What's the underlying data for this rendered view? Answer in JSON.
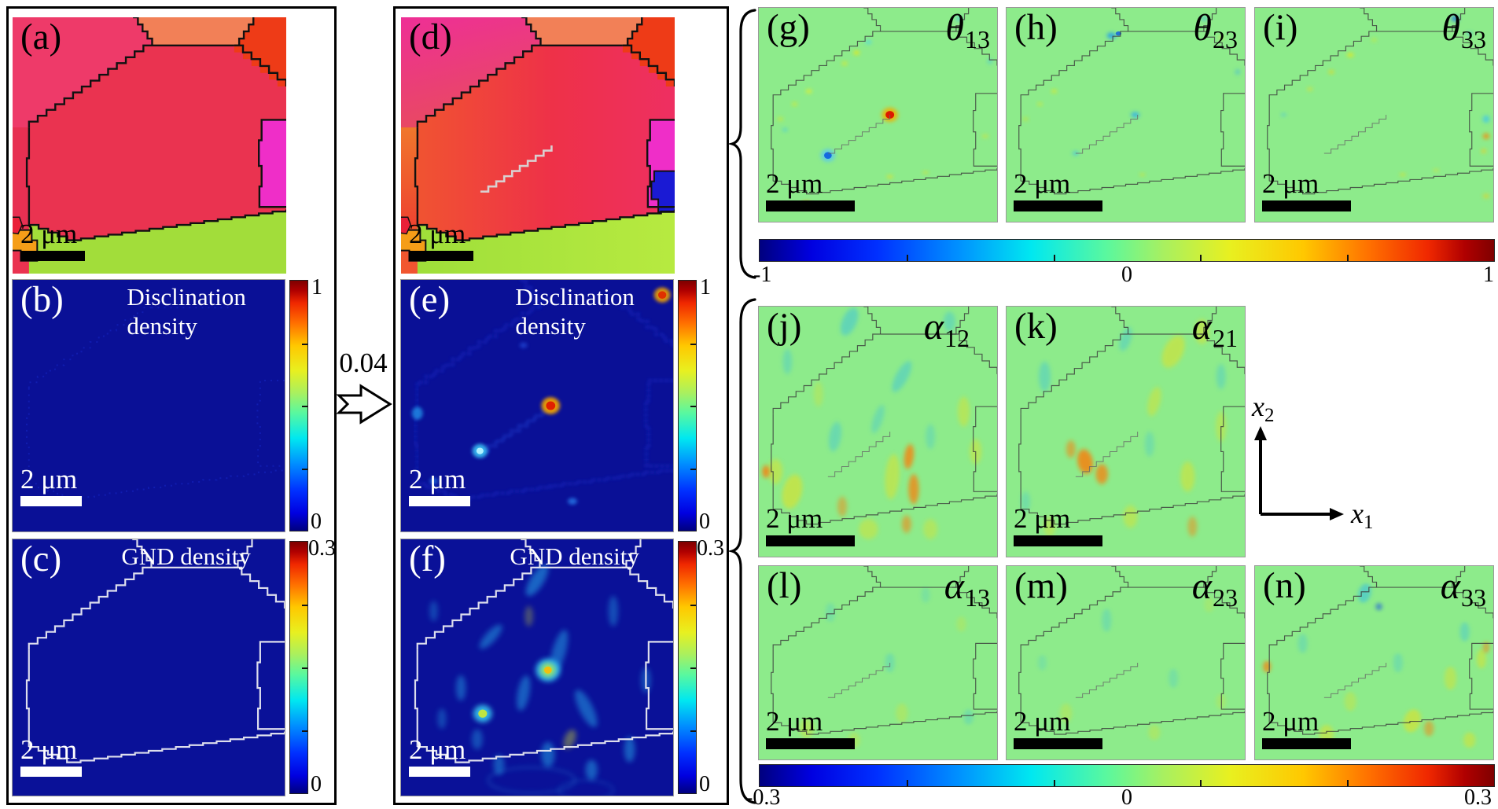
{
  "figure": {
    "transition_value": "0.04",
    "axes": {
      "x1_base": "x",
      "x1_sub": "1",
      "x2_base": "x",
      "x2_sub": "2"
    },
    "theta_colorbar": {
      "min": "-1",
      "mid": "0",
      "max": "1"
    },
    "alpha_colorbar": {
      "min": "-0.3",
      "mid": "0",
      "max": "0.3"
    },
    "panels": {
      "a": {
        "label": "(a)",
        "scale": "2 μm"
      },
      "b": {
        "label": "(b)",
        "scale": "2 μm",
        "title_line1": "Disclination",
        "title_line2": "density",
        "cbar_max": "1",
        "cbar_min": "0"
      },
      "c": {
        "label": "(c)",
        "scale": "2 μm",
        "title": "GND density",
        "cbar_max": "0.3",
        "cbar_min": "0"
      },
      "d": {
        "label": "(d)",
        "scale": "2 μm"
      },
      "e": {
        "label": "(e)",
        "scale": "2 μm",
        "title_line1": "Disclination",
        "title_line2": "density",
        "cbar_max": "1",
        "cbar_min": "0"
      },
      "f": {
        "label": "(f)",
        "scale": "2 μm",
        "title": "GND density",
        "cbar_max": "0.3",
        "cbar_min": "0"
      },
      "g": {
        "label": "(g)",
        "scale": "2 μm",
        "symbol": "θ",
        "sub": "13"
      },
      "h": {
        "label": "(h)",
        "scale": "2 μm",
        "symbol": "θ",
        "sub": "23"
      },
      "i": {
        "label": "(i)",
        "scale": "2 μm",
        "symbol": "θ",
        "sub": "33"
      },
      "j": {
        "label": "(j)",
        "scale": "2 μm",
        "symbol": "α",
        "sub": "12"
      },
      "k": {
        "label": "(k)",
        "scale": "2 μm",
        "symbol": "α",
        "sub": "21"
      },
      "l": {
        "label": "(l)",
        "scale": "2 μm",
        "symbol": "α",
        "sub": "13"
      },
      "m": {
        "label": "(m)",
        "scale": "2 μm",
        "symbol": "α",
        "sub": "23"
      },
      "n": {
        "label": "(n)",
        "scale": "2 μm",
        "symbol": "α",
        "sub": "33"
      }
    }
  }
}
